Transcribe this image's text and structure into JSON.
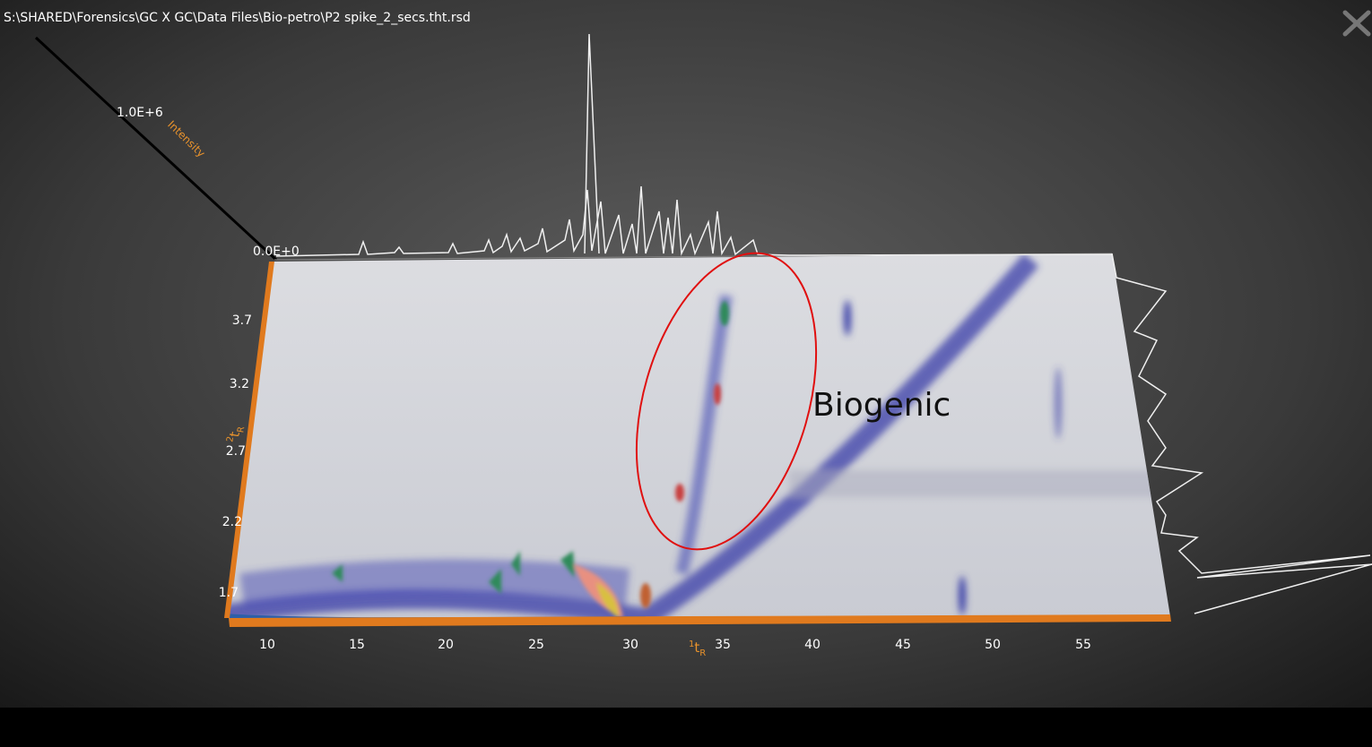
{
  "screen": {
    "file_path": "S:\\SHARED\\Forensics\\GC X GC\\Data Files\\Bio-petro\\P2 spike_2_secs.tht.rsd",
    "annotation": "Biogenic",
    "intensity_axis": {
      "label": "Intensity",
      "ticks": [
        "1.0E+6",
        "0.0E+0"
      ]
    },
    "x_axis": {
      "label_sup": "1",
      "label_main": "t",
      "label_sub": "R",
      "ticks": [
        "10",
        "15",
        "20",
        "25",
        "30",
        "35",
        "40",
        "45",
        "50",
        "55"
      ]
    },
    "y_axis": {
      "label_sup": "2",
      "label_main": "t",
      "label_sub": "R",
      "ticks": [
        "3.7",
        "3.2",
        "2.7",
        "2.2",
        "1.7"
      ]
    }
  }
}
